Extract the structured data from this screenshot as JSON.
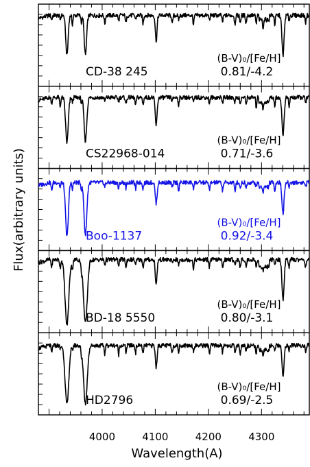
{
  "figure": {
    "ylabel": "Flux(arbitrary units)",
    "xlabel": "Wavelength(A)"
  },
  "chart_data": {
    "type": "line",
    "xlabel": "Wavelength(A)",
    "ylabel": "Flux(arbitrary units)",
    "xlim": [
      3880,
      4390
    ],
    "x_ticks": [
      4000,
      4100,
      4200,
      4300
    ],
    "x_tick_labels": [
      "4000",
      "4100",
      "4200",
      "4300"
    ],
    "shared_x_axis": true,
    "panel_count": 5,
    "grid": false,
    "panels": [
      {
        "star": "CD-38 245",
        "color": "#000000",
        "header": "(B-V)₀/[Fe/H]",
        "values": "0.81/-4.2",
        "continuum": 0.92,
        "lines": [
          {
            "wavelength": 3933.7,
            "depth": 0.55,
            "width": 2.2
          },
          {
            "wavelength": 3968.5,
            "depth": 0.55,
            "width": 2.2
          },
          {
            "wavelength": 4101.7,
            "depth": 0.35,
            "width": 1.6
          },
          {
            "wavelength": 4340.5,
            "depth": 0.55,
            "width": 2.0
          }
        ]
      },
      {
        "star": "CS22968-014",
        "color": "#000000",
        "header": "(B-V)₀/[Fe/H]",
        "values": "0.71/-3.6",
        "continuum": 0.92,
        "lines": [
          {
            "wavelength": 3933.7,
            "depth": 0.62,
            "width": 2.5
          },
          {
            "wavelength": 3968.5,
            "depth": 0.6,
            "width": 2.5
          },
          {
            "wavelength": 4101.7,
            "depth": 0.38,
            "width": 1.8
          },
          {
            "wavelength": 4340.5,
            "depth": 0.52,
            "width": 2.0
          }
        ]
      },
      {
        "star": "Boo-1137",
        "color": "#1414e6",
        "header": "(B-V)₀/[Fe/H]",
        "values": "0.92/-3.4",
        "continuum": 0.88,
        "lines": [
          {
            "wavelength": 3933.7,
            "depth": 0.75,
            "width": 2.6
          },
          {
            "wavelength": 3968.5,
            "depth": 0.72,
            "width": 2.6
          },
          {
            "wavelength": 4101.7,
            "depth": 0.28,
            "width": 1.8
          },
          {
            "wavelength": 4340.5,
            "depth": 0.42,
            "width": 2.0
          }
        ]
      },
      {
        "star": "BD-18 5550",
        "color": "#000000",
        "header": "(B-V)₀/[Fe/H]",
        "values": "0.80/-3.1",
        "continuum": 0.95,
        "lines": [
          {
            "wavelength": 3933.7,
            "depth": 0.9,
            "width": 3.5
          },
          {
            "wavelength": 3968.5,
            "depth": 0.88,
            "width": 3.5
          },
          {
            "wavelength": 4101.7,
            "depth": 0.35,
            "width": 1.6
          },
          {
            "wavelength": 4340.5,
            "depth": 0.55,
            "width": 2.0
          }
        ]
      },
      {
        "star": "HD2796",
        "color": "#000000",
        "header": "(B-V)₀/[Fe/H]",
        "values": "0.69/-2.5",
        "continuum": 0.9,
        "lines": [
          {
            "wavelength": 3933.7,
            "depth": 0.82,
            "width": 3.4
          },
          {
            "wavelength": 3968.5,
            "depth": 0.8,
            "width": 3.4
          },
          {
            "wavelength": 4101.7,
            "depth": 0.3,
            "width": 1.6
          },
          {
            "wavelength": 4340.5,
            "depth": 0.4,
            "width": 2.0
          }
        ]
      }
    ]
  }
}
